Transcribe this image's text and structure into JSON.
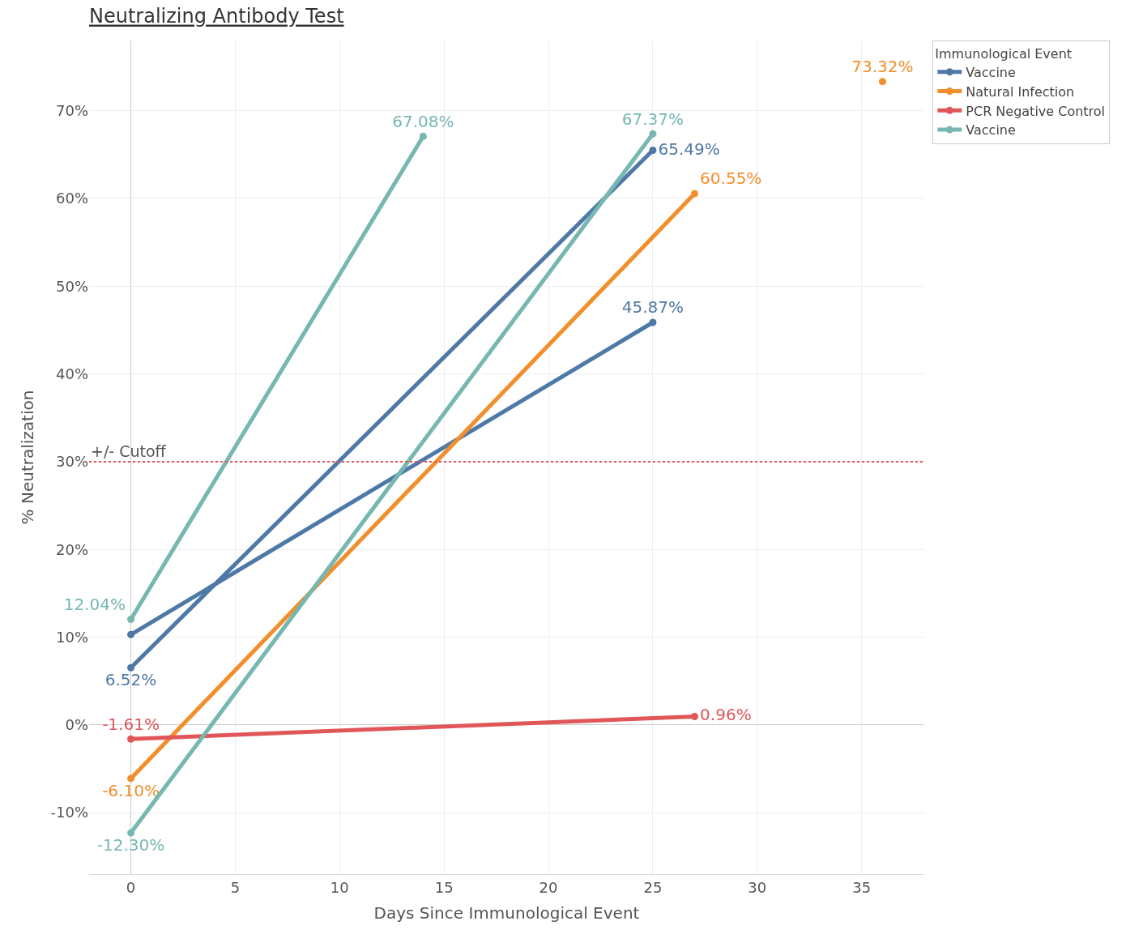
{
  "chart_data": {
    "type": "line",
    "title": "Neutralizing Antibody Test",
    "xlabel": "Days Since Immunological Event",
    "ylabel": "% Neutralization",
    "legend_title": "Immunological Event",
    "series": [
      {
        "name": "Vaccine",
        "color": "#4e79a7",
        "x": [
          0,
          25
        ],
        "values": [
          6.52,
          65.49
        ],
        "value_labels": [
          "6.52%",
          "65.49%"
        ]
      },
      {
        "color": "#4e79a7",
        "x": [
          0,
          25
        ],
        "values": [
          10.3,
          45.87
        ],
        "value_labels": [
          null,
          "45.87%"
        ]
      },
      {
        "name": "Natural Infection",
        "color": "#f28e2b",
        "x": [
          0,
          27
        ],
        "values": [
          -6.1,
          60.55
        ],
        "value_labels": [
          "-6.10%",
          "60.55%"
        ]
      },
      {
        "color": "#f28e2b",
        "x": [
          36
        ],
        "values": [
          73.32
        ],
        "value_labels": [
          "73.32%"
        ]
      },
      {
        "name": "PCR Negative Control",
        "color": "#e15759",
        "x": [
          0,
          27
        ],
        "values": [
          -1.61,
          0.96
        ],
        "value_labels": [
          "-1.61%",
          "0.96%"
        ]
      },
      {
        "name": "Vaccine",
        "color": "#76b7b2",
        "x": [
          0,
          14
        ],
        "values": [
          12.04,
          67.08
        ],
        "value_labels": [
          "12.04%",
          "67.08%"
        ]
      },
      {
        "color": "#76b7b2",
        "x": [
          0,
          25
        ],
        "values": [
          -12.3,
          67.37
        ],
        "value_labels": [
          "-12.30%",
          "67.37%"
        ]
      }
    ],
    "xlim": [
      -2,
      38
    ],
    "xticks": [
      0,
      5,
      10,
      15,
      20,
      25,
      30,
      35
    ],
    "ylim": [
      -17,
      78
    ],
    "yticks": [
      {
        "value": -10,
        "label": "-10%"
      },
      {
        "value": 0,
        "label": "0%"
      },
      {
        "value": 10,
        "label": "10%"
      },
      {
        "value": 20,
        "label": "20%"
      },
      {
        "value": 30,
        "label": "30%"
      },
      {
        "value": 40,
        "label": "40%"
      },
      {
        "value": 50,
        "label": "50%"
      },
      {
        "value": 60,
        "label": "60%"
      },
      {
        "value": 70,
        "label": "70%"
      }
    ],
    "ref_lines": [
      {
        "axis": "y",
        "value": 30,
        "label": "+/- Cutoff",
        "color": "#e15759",
        "line_style": "dotted"
      }
    ],
    "grid": true,
    "legend": "top right",
    "marker": "circle",
    "line_style": "solid"
  }
}
